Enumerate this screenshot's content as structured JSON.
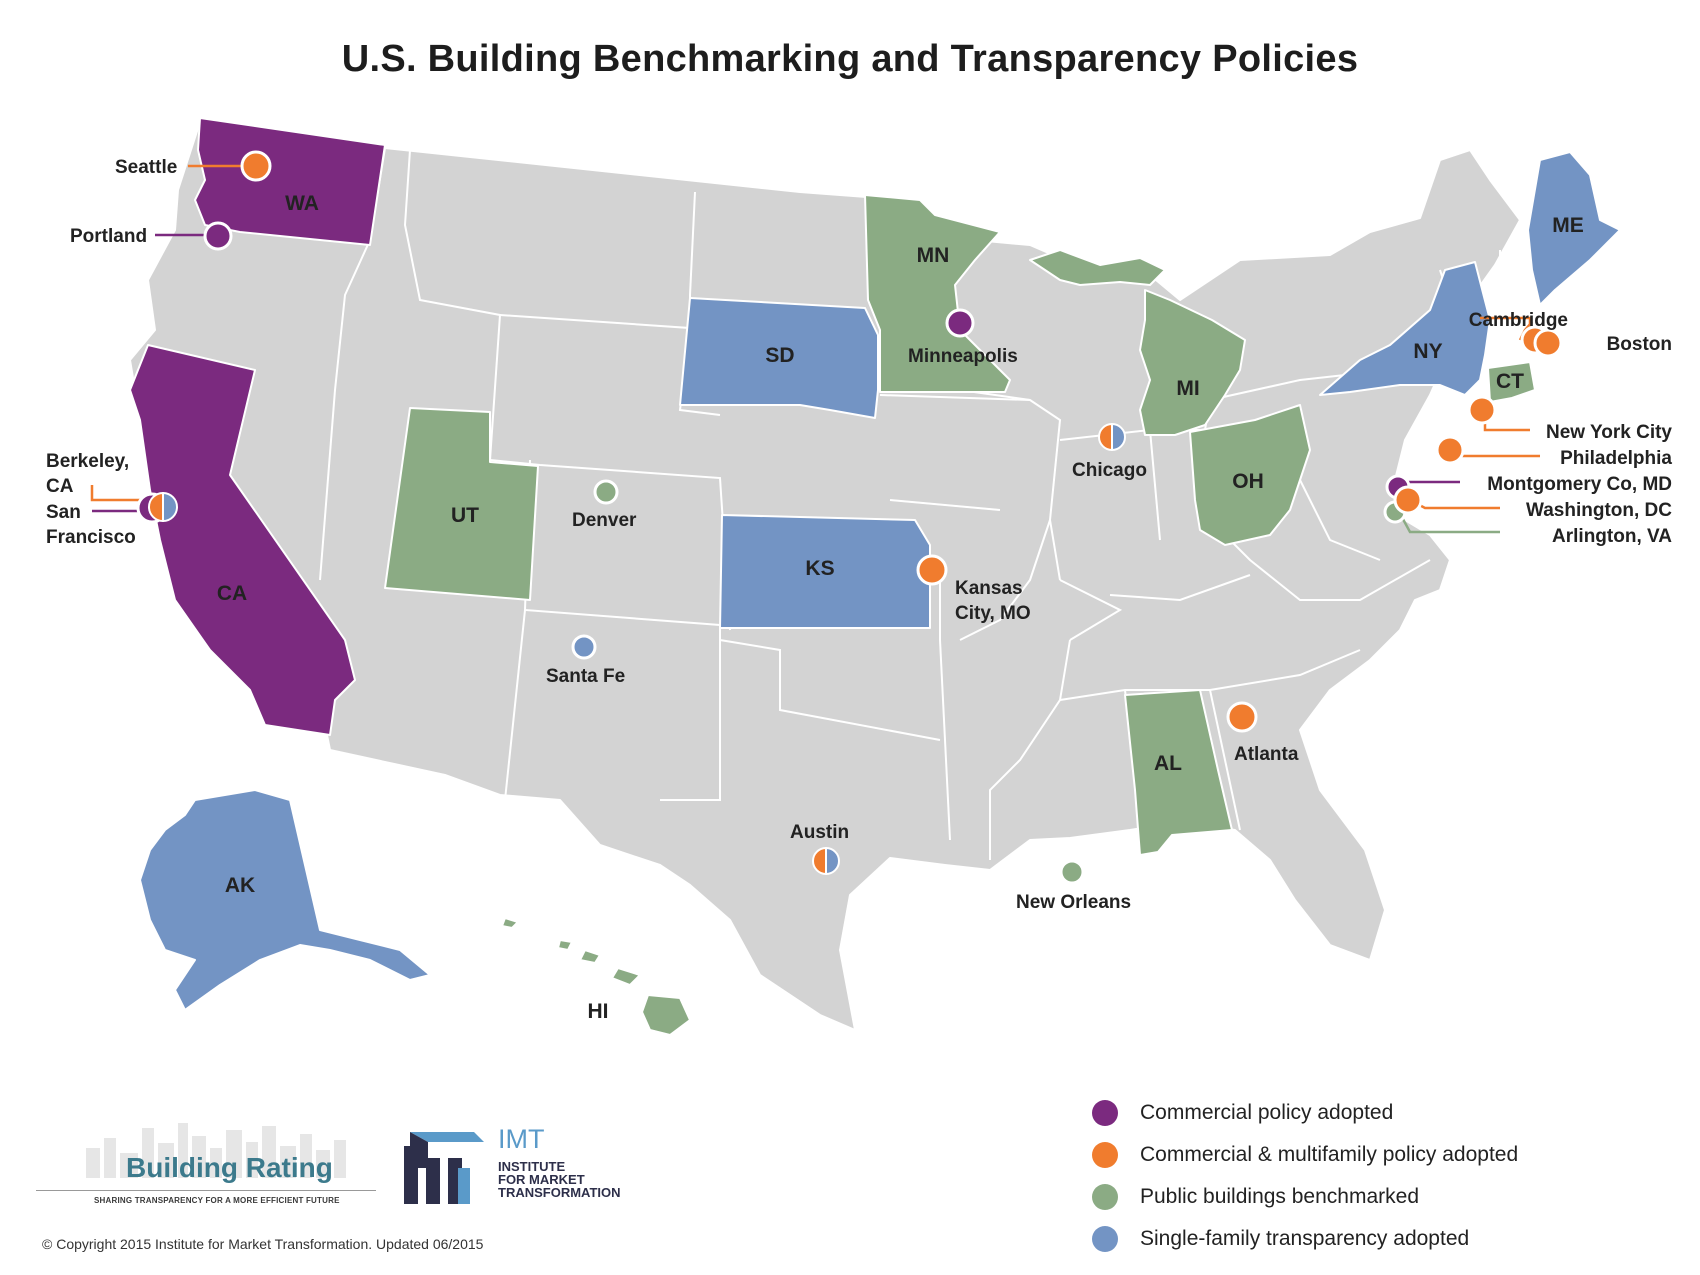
{
  "title": "U.S. Building Benchmarking and Transparency Policies",
  "colors": {
    "commercial": "#7b2a7f",
    "multifamily": "#f07c2e",
    "public": "#8bab84",
    "single_family": "#7394c4",
    "other_state": "#d3d3d3"
  },
  "state_labels": {
    "WA": "WA",
    "CA": "CA",
    "UT": "UT",
    "SD": "SD",
    "KS": "KS",
    "MN": "MN",
    "MI": "MI",
    "OH": "OH",
    "NY": "NY",
    "ME": "ME",
    "CT": "CT",
    "AL": "AL",
    "AK": "AK",
    "HI": "HI"
  },
  "state_policies": [
    {
      "state": "WA",
      "policy": "commercial"
    },
    {
      "state": "CA",
      "policy": "commercial"
    },
    {
      "state": "SD",
      "policy": "single_family"
    },
    {
      "state": "KS",
      "policy": "single_family"
    },
    {
      "state": "NY",
      "policy": "single_family"
    },
    {
      "state": "ME",
      "policy": "single_family"
    },
    {
      "state": "AK",
      "policy": "single_family"
    },
    {
      "state": "UT",
      "policy": "public"
    },
    {
      "state": "MN",
      "policy": "public"
    },
    {
      "state": "MI",
      "policy": "public"
    },
    {
      "state": "OH",
      "policy": "public"
    },
    {
      "state": "CT",
      "policy": "public"
    },
    {
      "state": "AL",
      "policy": "public"
    },
    {
      "state": "HI",
      "policy": "public"
    }
  ],
  "cities": {
    "seattle": {
      "label": "Seattle",
      "policy": "multifamily"
    },
    "portland": {
      "label": "Portland",
      "policy": "commercial"
    },
    "berkeley": {
      "label": "Berkeley, CA",
      "line1": "Berkeley,",
      "line2": "CA",
      "policy": "multifamily"
    },
    "san_francisco": {
      "label": "San Francisco",
      "line1": "San",
      "line2": "Francisco",
      "policy": "commercial + single_family"
    },
    "denver": {
      "label": "Denver",
      "policy": "public"
    },
    "santa_fe": {
      "label": "Santa Fe",
      "policy": "single_family"
    },
    "minneapolis": {
      "label": "Minneapolis",
      "policy": "commercial"
    },
    "kansas_city": {
      "label": "Kansas City, MO",
      "line1": "Kansas",
      "line2": "City, MO",
      "policy": "multifamily"
    },
    "chicago": {
      "label": "Chicago",
      "policy": "multifamily + single_family"
    },
    "austin": {
      "label": "Austin",
      "policy": "multifamily + single_family"
    },
    "new_orleans": {
      "label": "New Orleans",
      "policy": "public"
    },
    "atlanta": {
      "label": "Atlanta",
      "policy": "multifamily"
    },
    "cambridge": {
      "label": "Cambridge",
      "policy": "multifamily"
    },
    "boston": {
      "label": "Boston",
      "policy": "multifamily"
    },
    "new_york_city": {
      "label": "New York City",
      "policy": "multifamily"
    },
    "philadelphia": {
      "label": "Philadelphia",
      "policy": "multifamily"
    },
    "montgomery_co": {
      "label": "Montgomery Co, MD",
      "policy": "commercial"
    },
    "washington_dc": {
      "label": "Washington, DC",
      "policy": "multifamily"
    },
    "arlington": {
      "label": "Arlington, VA",
      "policy": "public"
    }
  },
  "legend": [
    {
      "label": "Commercial policy adopted",
      "color": "#7b2a7f"
    },
    {
      "label": "Commercial & multifamily policy adopted",
      "color": "#f07c2e"
    },
    {
      "label": "Public buildings benchmarked",
      "color": "#8bab84"
    },
    {
      "label": "Single-family transparency adopted",
      "color": "#7394c4"
    }
  ],
  "branding": {
    "building_rating_name": "Building Rating",
    "building_rating_tagline": "SHARING TRANSPARENCY FOR A MORE EFFICIENT FUTURE",
    "imt_name": "IMT",
    "imt_line1": "INSTITUTE",
    "imt_line2": "FOR MARKET",
    "imt_line3": "TRANSFORMATION"
  },
  "copyright": "© Copyright 2015 Institute for Market Transformation. Updated 06/2015"
}
